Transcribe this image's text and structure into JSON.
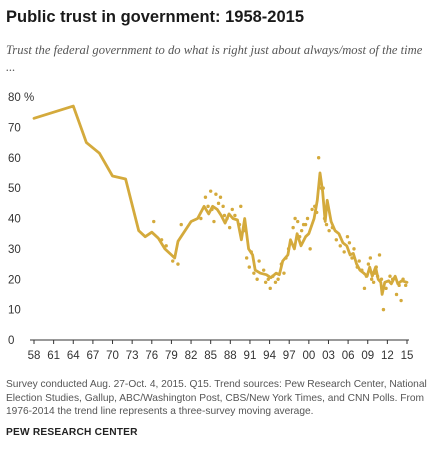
{
  "title": "Public trust in government: 1958-2015",
  "subtitle": "Trust the federal government to do what is right just about always/most of the time ...",
  "source": "Survey conducted Aug. 27-Oct. 4, 2015. Q15. Trend sources: Pew Research Center, National Election Studies, Gallup, ABC/Washington Post, CBS/New York Times, and CNN Polls. From 1976-2014 the trend line represents a three-survey moving average.",
  "brand": "PEW RESEARCH CENTER",
  "colors": {
    "line": "#d4aa3c",
    "dots": "#d4aa3c",
    "axis": "#333333"
  },
  "chart_data": {
    "type": "line",
    "ylim": [
      0,
      80
    ],
    "xlim": [
      1958,
      2015
    ],
    "y_ticks": [
      0,
      10,
      20,
      30,
      40,
      50,
      60,
      70,
      80
    ],
    "y_tick_labels": [
      "0",
      "10",
      "20",
      "30",
      "40",
      "50",
      "60",
      "70",
      "80 %"
    ],
    "x_ticks": [
      1958,
      1961,
      1964,
      1967,
      1970,
      1973,
      1976,
      1979,
      1982,
      1985,
      1988,
      1991,
      1994,
      1997,
      2000,
      2003,
      2006,
      2009,
      2012,
      2015
    ],
    "x_tick_labels": [
      "58",
      "61",
      "64",
      "67",
      "70",
      "73",
      "76",
      "79",
      "82",
      "85",
      "88",
      "91",
      "94",
      "97",
      "00",
      "03",
      "06",
      "09",
      "12",
      "15"
    ],
    "grid": false,
    "series": [
      {
        "role": "trend_line",
        "points": [
          [
            1958,
            73
          ],
          [
            1964,
            77
          ],
          [
            1966,
            65
          ],
          [
            1968,
            61.5
          ],
          [
            1970,
            54
          ],
          [
            1972,
            53
          ],
          [
            1974,
            36
          ],
          [
            1975,
            34
          ],
          [
            1976,
            35.5
          ],
          [
            1977,
            33.5
          ],
          [
            1978,
            30
          ],
          [
            1979,
            28
          ],
          [
            1979.5,
            27
          ],
          [
            1980,
            32.5
          ],
          [
            1982,
            39
          ],
          [
            1983,
            40
          ],
          [
            1984,
            44
          ],
          [
            1984.7,
            41.5
          ],
          [
            1985.3,
            44
          ],
          [
            1986,
            43
          ],
          [
            1986.6,
            41
          ],
          [
            1987.2,
            38.5
          ],
          [
            1987.8,
            41.5
          ],
          [
            1988.4,
            40
          ],
          [
            1989.1,
            39.5
          ],
          [
            1989.7,
            33
          ],
          [
            1990.2,
            40
          ],
          [
            1990.8,
            30
          ],
          [
            1991.4,
            28
          ],
          [
            1991.8,
            23
          ],
          [
            1992.6,
            22
          ],
          [
            1993.5,
            21.5
          ],
          [
            1994.2,
            20.5
          ],
          [
            1995,
            22
          ],
          [
            1995.5,
            21.5
          ],
          [
            1996,
            26
          ],
          [
            1996.8,
            28
          ],
          [
            1997.2,
            33
          ],
          [
            1997.8,
            30
          ],
          [
            1998.2,
            35
          ],
          [
            1998.8,
            31
          ],
          [
            1999.5,
            34
          ],
          [
            2000,
            35
          ],
          [
            2000.8,
            40
          ],
          [
            2001.3,
            46
          ],
          [
            2001.7,
            55
          ],
          [
            2002.1,
            49
          ],
          [
            2002.5,
            39
          ],
          [
            2002.8,
            46
          ],
          [
            2003.4,
            39
          ],
          [
            2004,
            36
          ],
          [
            2004.6,
            35
          ],
          [
            2005.2,
            32
          ],
          [
            2005.8,
            31
          ],
          [
            2006.3,
            28
          ],
          [
            2006.8,
            28.5
          ],
          [
            2007.3,
            25
          ],
          [
            2007.8,
            23
          ],
          [
            2008.4,
            22
          ],
          [
            2008.9,
            21
          ],
          [
            2009.3,
            24
          ],
          [
            2009.7,
            21
          ],
          [
            2010.2,
            24
          ],
          [
            2010.6,
            20
          ],
          [
            2011,
            19
          ],
          [
            2011.2,
            15
          ],
          [
            2011.6,
            19
          ],
          [
            2012.2,
            19.5
          ],
          [
            2012.6,
            18.5
          ],
          [
            2013.2,
            21
          ],
          [
            2013.6,
            18.5
          ],
          [
            2014.2,
            19.5
          ],
          [
            2015,
            19
          ]
        ]
      },
      {
        "role": "individual_polls",
        "points": [
          [
            1976.3,
            39
          ],
          [
            1977.5,
            33
          ],
          [
            1978.2,
            31
          ],
          [
            1979.2,
            26
          ],
          [
            1980,
            25
          ],
          [
            1980.5,
            38
          ],
          [
            1983.5,
            40
          ],
          [
            1984.2,
            47
          ],
          [
            1984.6,
            44
          ],
          [
            1985,
            49
          ],
          [
            1985.2,
            43
          ],
          [
            1985.5,
            39
          ],
          [
            1985.8,
            48
          ],
          [
            1986.2,
            45
          ],
          [
            1986.5,
            47
          ],
          [
            1986.9,
            44
          ],
          [
            1987.1,
            41
          ],
          [
            1987.5,
            40
          ],
          [
            1987.9,
            37
          ],
          [
            1988.3,
            43
          ],
          [
            1988.7,
            41
          ],
          [
            1989.4,
            38
          ],
          [
            1989.6,
            44
          ],
          [
            1990.1,
            36
          ],
          [
            1990.5,
            27
          ],
          [
            1990.9,
            24
          ],
          [
            1991.2,
            29
          ],
          [
            1991.6,
            22
          ],
          [
            1992.1,
            20
          ],
          [
            1992.4,
            26
          ],
          [
            1993.1,
            23
          ],
          [
            1993.4,
            19
          ],
          [
            1993.8,
            20
          ],
          [
            1994.1,
            17
          ],
          [
            1994.5,
            21
          ],
          [
            1994.9,
            19
          ],
          [
            1995.3,
            20
          ],
          [
            1995.8,
            25
          ],
          [
            1996.2,
            22
          ],
          [
            1996.5,
            27
          ],
          [
            1996.9,
            30
          ],
          [
            1997.3,
            32
          ],
          [
            1997.6,
            37
          ],
          [
            1997.9,
            40
          ],
          [
            1998.3,
            39
          ],
          [
            1998.6,
            34
          ],
          [
            1998.9,
            36
          ],
          [
            1999.2,
            38
          ],
          [
            1999.5,
            38
          ],
          [
            1999.8,
            40
          ],
          [
            2000.2,
            30
          ],
          [
            2000.5,
            43
          ],
          [
            2000.9,
            44
          ],
          [
            2001.2,
            42
          ],
          [
            2001.5,
            60
          ],
          [
            2001.9,
            50
          ],
          [
            2002.2,
            50
          ],
          [
            2002.4,
            40
          ],
          [
            2002.7,
            38
          ],
          [
            2003.1,
            36
          ],
          [
            2003.6,
            37
          ],
          [
            2004.2,
            33
          ],
          [
            2004.8,
            31
          ],
          [
            2005.4,
            29
          ],
          [
            2005.9,
            34
          ],
          [
            2006.2,
            32
          ],
          [
            2006.6,
            27
          ],
          [
            2006.9,
            30
          ],
          [
            2007.4,
            24
          ],
          [
            2007.7,
            26
          ],
          [
            2008.1,
            23
          ],
          [
            2008.5,
            17
          ],
          [
            2008.8,
            21
          ],
          [
            2009.1,
            25
          ],
          [
            2009.4,
            27
          ],
          [
            2009.6,
            20
          ],
          [
            2009.9,
            19
          ],
          [
            2010.1,
            22
          ],
          [
            2010.3,
            24
          ],
          [
            2010.5,
            21
          ],
          [
            2010.8,
            28
          ],
          [
            2011.1,
            20
          ],
          [
            2011.4,
            10
          ],
          [
            2011.8,
            17
          ],
          [
            2012.4,
            21
          ],
          [
            2012.8,
            20
          ],
          [
            2013.4,
            15
          ],
          [
            2013.8,
            18
          ],
          [
            2014.1,
            13
          ],
          [
            2014.4,
            20
          ],
          [
            2014.8,
            18
          ]
        ]
      }
    ]
  }
}
